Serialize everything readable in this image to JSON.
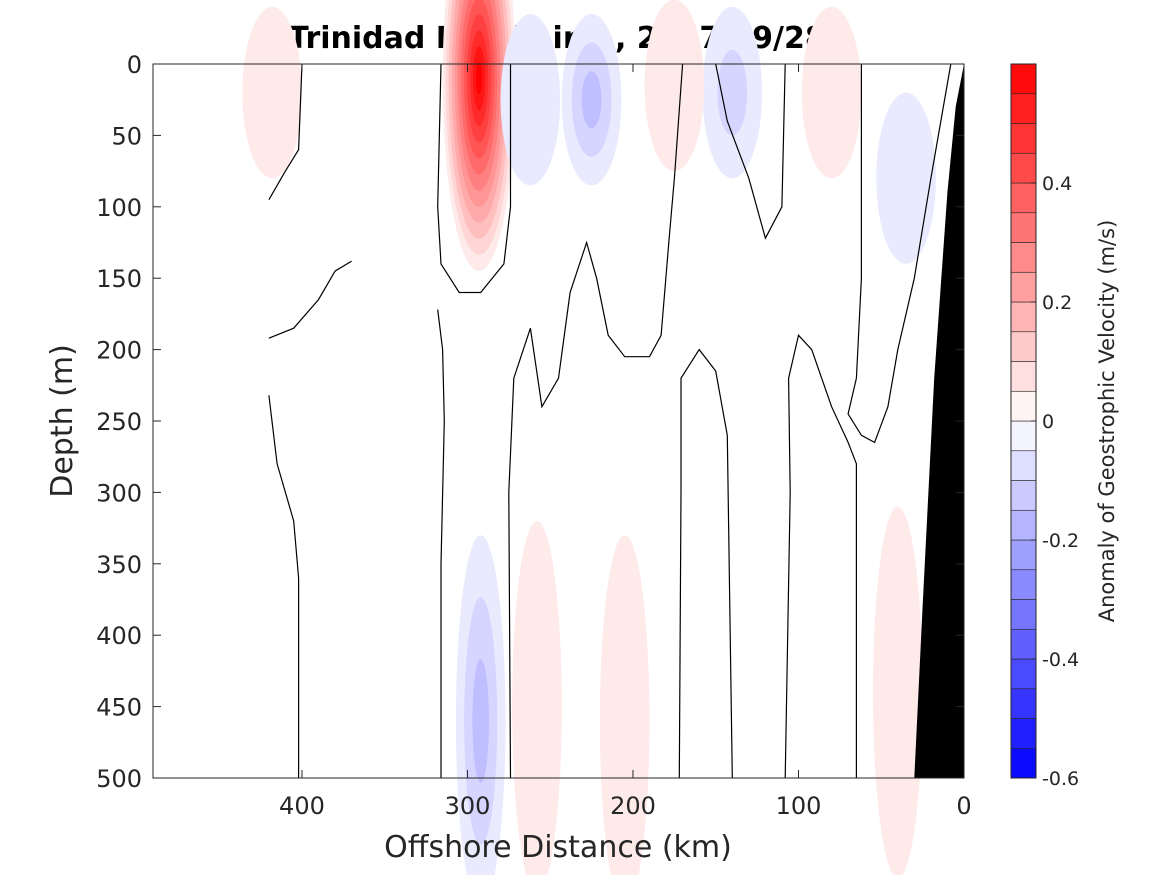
{
  "chart_data": {
    "type": "contour",
    "title": "Trinidad Head Line , 2017/09/28",
    "xlabel": "Offshore Distance (km)",
    "ylabel": "Depth (m)",
    "xlim": [
      490,
      0
    ],
    "ylim": [
      0,
      500
    ],
    "x_reversed": true,
    "y_reversed": true,
    "xticks": [
      400,
      300,
      200,
      100,
      0
    ],
    "yticks": [
      0,
      50,
      100,
      150,
      200,
      250,
      300,
      350,
      400,
      450,
      500
    ],
    "colorbar": {
      "label": "Anomaly of Geostrophic Velocity (m/s)",
      "range": [
        -0.6,
        0.6
      ],
      "ticks": [
        -0.6,
        -0.4,
        -0.2,
        0,
        0.2,
        0.4
      ],
      "levels": 24,
      "negative_color": "#0000ff",
      "positive_color": "#ff0000",
      "zero_color": "#ffffff"
    },
    "features": [
      {
        "name": "strong positive core",
        "x_km": 293,
        "depth_m": 10,
        "value": 0.58
      },
      {
        "name": "weak positive near-surface patch",
        "x_km": 418,
        "depth_m": 20,
        "value": 0.06
      },
      {
        "name": "negative subsurface band",
        "x_km": 292,
        "depth_m": 460,
        "value": -0.17
      },
      {
        "name": "negative near-surface patch",
        "x_km": 262,
        "depth_m": 25,
        "value": -0.07
      },
      {
        "name": "negative near-surface patch",
        "x_km": 225,
        "depth_m": 25,
        "value": -0.13
      },
      {
        "name": "negative near-surface patch",
        "x_km": 140,
        "depth_m": 20,
        "value": -0.1
      },
      {
        "name": "negative nearshore patch",
        "x_km": 35,
        "depth_m": 80,
        "value": -0.07
      },
      {
        "name": "weak positive deep patch",
        "x_km": 258,
        "depth_m": 450,
        "value": 0.05
      },
      {
        "name": "weak positive deep patch",
        "x_km": 205,
        "depth_m": 460,
        "value": 0.06
      },
      {
        "name": "weak positive deep patch",
        "x_km": 40,
        "depth_m": 440,
        "value": 0.07
      },
      {
        "name": "weak positive near-surface patch",
        "x_km": 80,
        "depth_m": 20,
        "value": 0.06
      },
      {
        "name": "weak positive near-surface patch",
        "x_km": 175,
        "depth_m": 15,
        "value": 0.05
      }
    ],
    "bathymetry": {
      "description": "seafloor wedge near 0 km",
      "points_km_m": [
        [
          0,
          0
        ],
        [
          5,
          30
        ],
        [
          10,
          90
        ],
        [
          18,
          220
        ],
        [
          25,
          380
        ],
        [
          30,
          500
        ],
        [
          0,
          500
        ]
      ]
    }
  }
}
